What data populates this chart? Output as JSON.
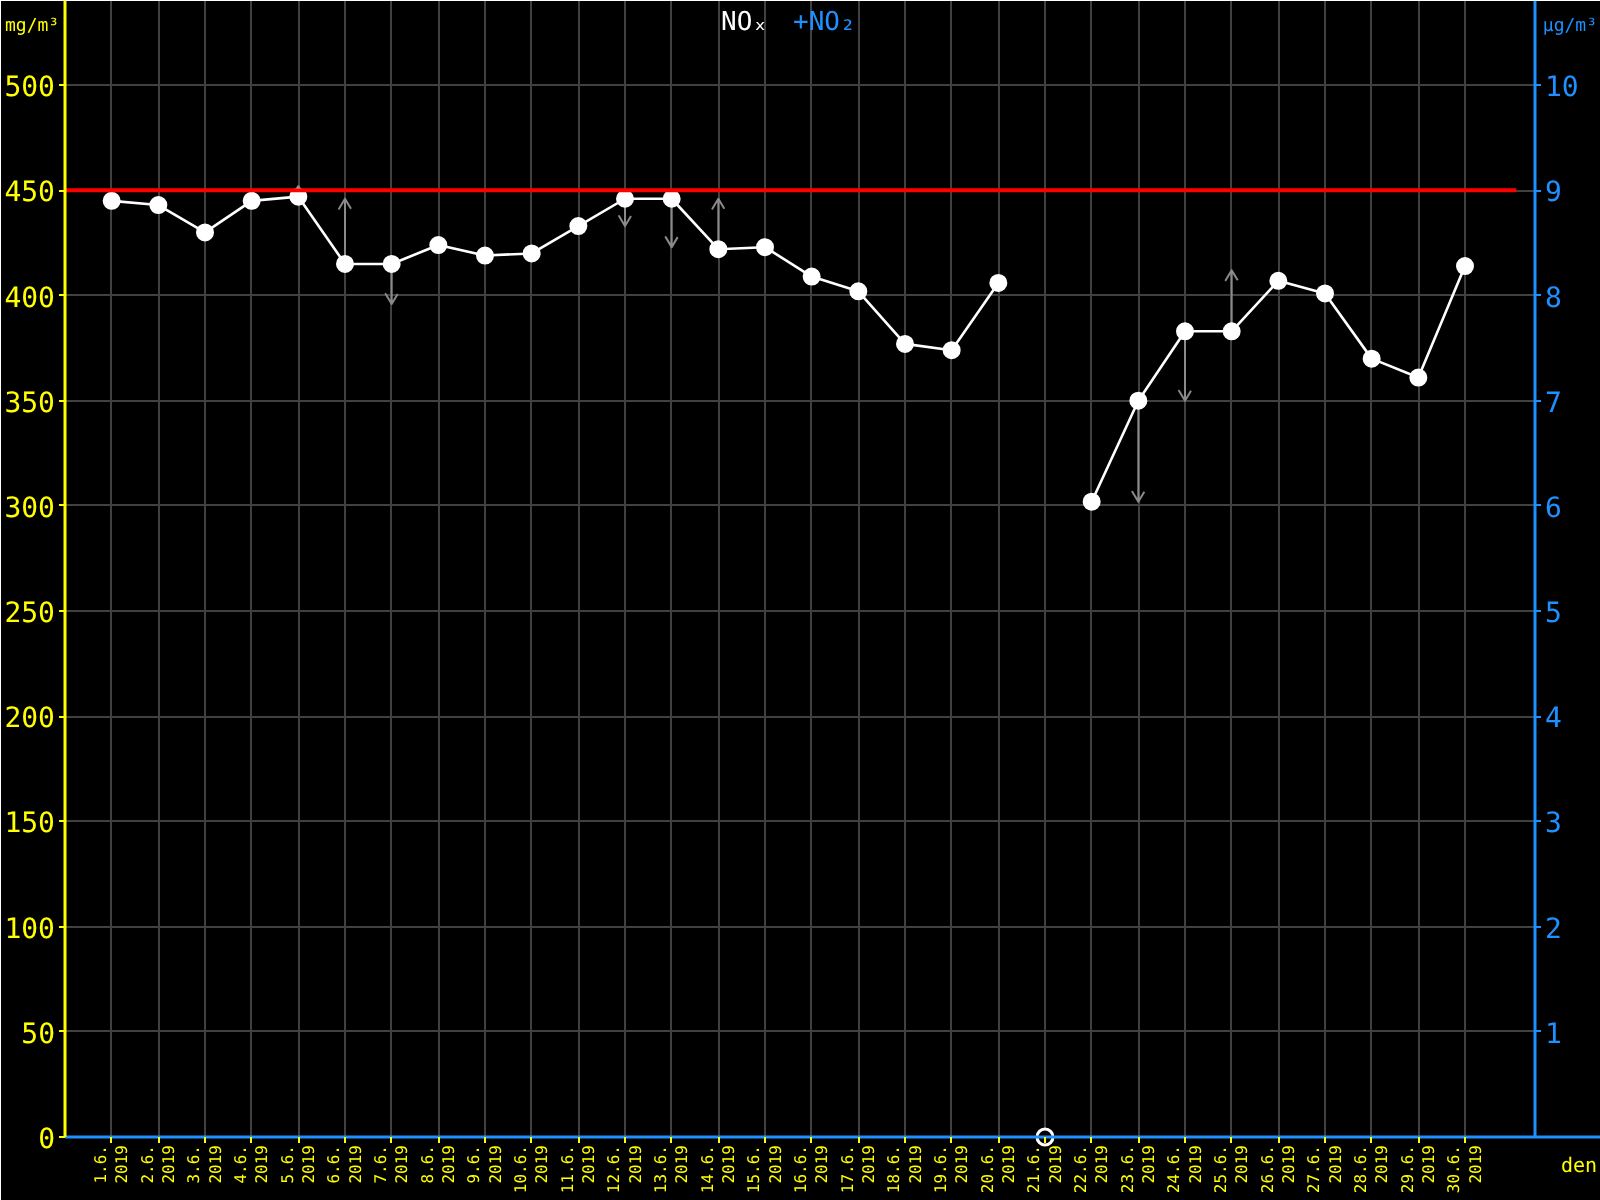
{
  "chart_data": {
    "type": "line",
    "ylabel": "mg/m³",
    "y2label": "µg/m³",
    "xlabel": "den",
    "categories": [
      "1.6. 2019",
      "2.6. 2019",
      "3.6. 2019",
      "4.6. 2019",
      "5.6. 2019",
      "6.6. 2019",
      "7.6. 2019",
      "8.6. 2019",
      "9.6. 2019",
      "10.6. 2019",
      "11.6. 2019",
      "12.6. 2019",
      "13.6. 2019",
      "14.6. 2019",
      "15.6. 2019",
      "16.6. 2019",
      "17.6. 2019",
      "18.6. 2019",
      "19.6. 2019",
      "20.6. 2019",
      "21.6. 2019",
      "22.6. 2019",
      "23.6. 2019",
      "24.6. 2019",
      "25.6. 2019",
      "26.6. 2019",
      "27.6. 2019",
      "28.6. 2019",
      "29.6. 2019",
      "30.6. 2019"
    ],
    "ylim": [
      0,
      540
    ],
    "yticks": [
      0,
      50,
      100,
      150,
      200,
      250,
      300,
      350,
      400,
      450,
      500
    ],
    "y2lim": [
      0,
      10.8
    ],
    "y2ticks": [
      1,
      2,
      3,
      4,
      5,
      6,
      7,
      8,
      9,
      10
    ],
    "grid": true,
    "marker": "circle",
    "line_style": "solid",
    "ref_lines": [
      {
        "axis": "y",
        "value": 450,
        "color": "#ff0000"
      }
    ],
    "series": [
      {
        "name": "NOₓ",
        "color": "#ffffff",
        "values": [
          445,
          443,
          430,
          445,
          447,
          415,
          415,
          424,
          419,
          420,
          433,
          446,
          446,
          422,
          423,
          409,
          402,
          377,
          374,
          406,
          null,
          302,
          350,
          383,
          383,
          407,
          401,
          370,
          361,
          414
        ],
        "errors": [
          null,
          null,
          null,
          null,
          [
            447,
            452
          ],
          [
            415,
            446
          ],
          [
            396,
            415
          ],
          null,
          null,
          null,
          null,
          [
            433,
            446
          ],
          [
            423,
            446
          ],
          [
            422,
            446
          ],
          null,
          null,
          null,
          null,
          null,
          null,
          null,
          null,
          [
            302,
            350
          ],
          [
            350,
            383
          ],
          [
            383,
            412
          ],
          null,
          null,
          null,
          null,
          null
        ]
      },
      {
        "name": "+NO₂",
        "color": "#1e90ff",
        "axis": "y2",
        "values": [
          null,
          null,
          null,
          null,
          null,
          null,
          null,
          null,
          null,
          null,
          null,
          null,
          null,
          null,
          null,
          null,
          null,
          null,
          null,
          null,
          null,
          null,
          null,
          null,
          null,
          null,
          null,
          null,
          null,
          null
        ]
      },
      {
        "type": "scatter",
        "color": "#ffffff",
        "values": [
          null,
          null,
          null,
          null,
          null,
          null,
          null,
          null,
          null,
          null,
          null,
          null,
          null,
          null,
          null,
          null,
          null,
          null,
          null,
          null,
          0,
          null,
          null,
          null,
          null,
          null,
          null,
          null,
          null,
          null
        ]
      }
    ]
  }
}
